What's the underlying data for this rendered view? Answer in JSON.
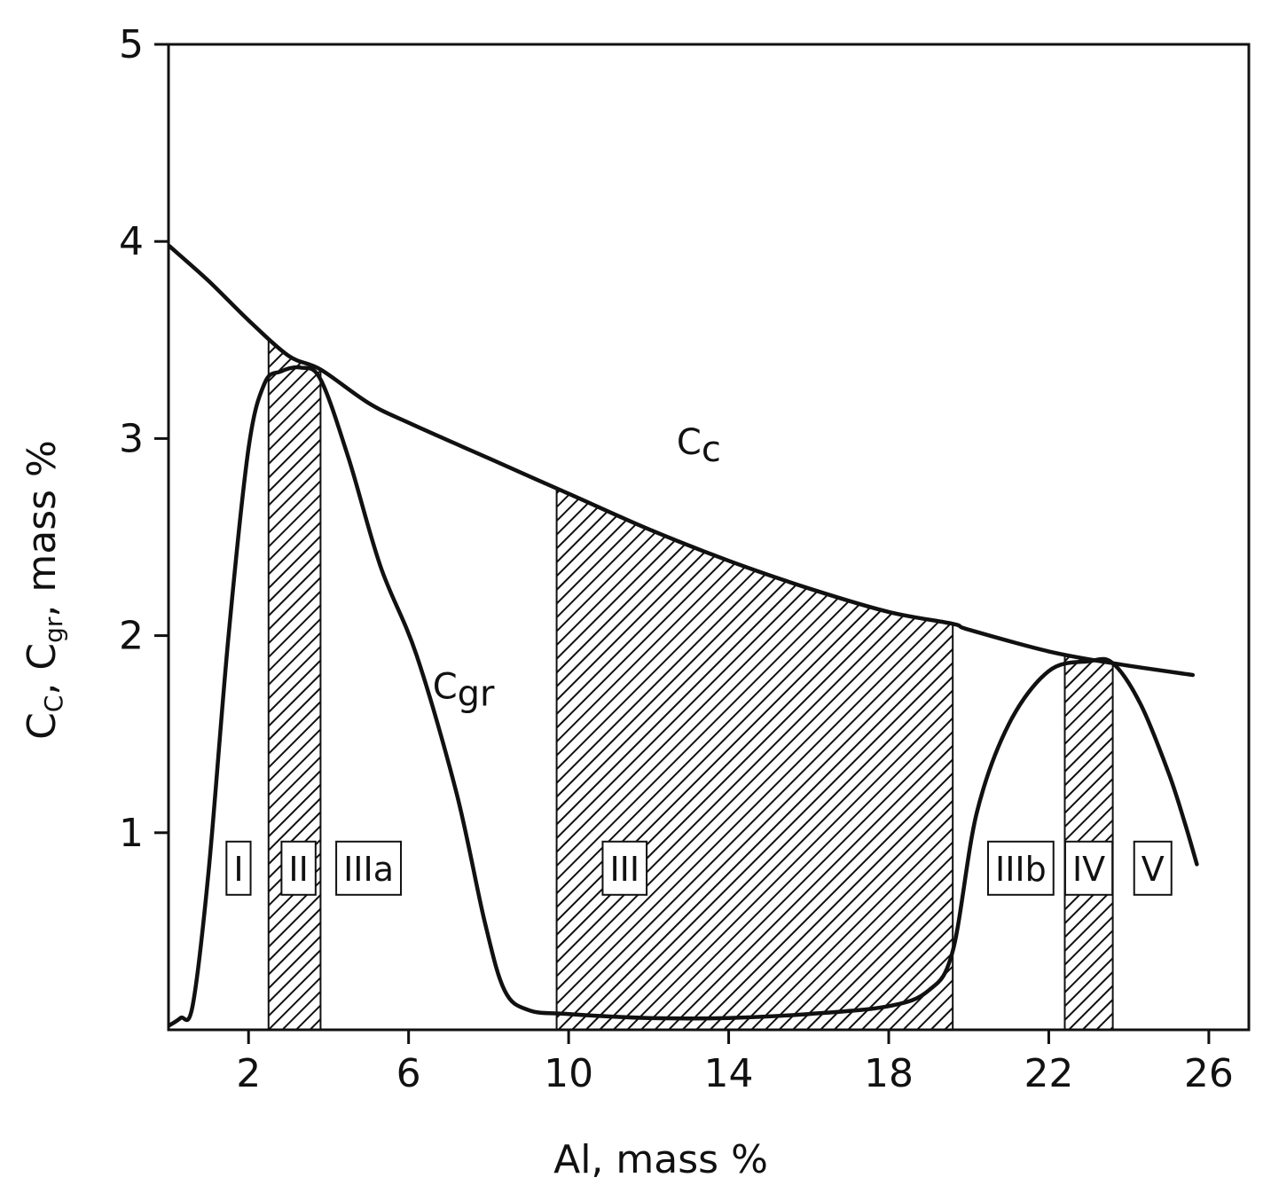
{
  "chart_data": {
    "type": "line",
    "title": "",
    "xlabel": "Al, mass %",
    "ylabel": {
      "main": "C",
      "sub_c": "C",
      "sep1": ", C",
      "sub_gr": "gr",
      "sep2": ", mass %"
    },
    "xlim": [
      0,
      27
    ],
    "ylim": [
      0,
      5
    ],
    "x_ticks": [
      2,
      6,
      10,
      14,
      18,
      22,
      26
    ],
    "y_ticks": [
      1,
      2,
      3,
      4,
      5
    ],
    "x_tick_labels": [
      "2",
      "6",
      "10",
      "14",
      "18",
      "22",
      "26"
    ],
    "y_tick_labels": [
      "1",
      "2",
      "3",
      "4",
      "5"
    ],
    "grid": false,
    "series": [
      {
        "name": "Cc",
        "label_main": "C",
        "label_sub": "c",
        "x": [
          0,
          1,
          2,
          3,
          3.8,
          5,
          6,
          8,
          10,
          12,
          14,
          16,
          18,
          19.6,
          20,
          22,
          23.6,
          25.6
        ],
        "y": [
          3.98,
          3.8,
          3.6,
          3.42,
          3.35,
          3.18,
          3.08,
          2.9,
          2.72,
          2.54,
          2.38,
          2.24,
          2.12,
          2.06,
          2.03,
          1.92,
          1.86,
          1.8
        ]
      },
      {
        "name": "Cgr",
        "label_main": "C",
        "label_sub": "gr",
        "x": [
          0,
          0.3,
          0.6,
          1.0,
          1.5,
          2.0,
          2.4,
          2.8,
          3.3,
          3.8,
          4.5,
          5.3,
          6.2,
          7.2,
          7.9,
          8.4,
          9.0,
          10,
          12,
          14,
          16,
          18,
          19.0,
          19.6,
          20.2,
          21.0,
          22.0,
          23.0,
          23.6,
          24.3,
          25.0,
          25.4,
          25.7
        ],
        "y": [
          0.02,
          0.06,
          0.12,
          0.8,
          2.0,
          2.95,
          3.28,
          3.34,
          3.36,
          3.3,
          2.9,
          2.35,
          1.9,
          1.2,
          0.55,
          0.2,
          0.1,
          0.08,
          0.06,
          0.06,
          0.08,
          0.12,
          0.2,
          0.4,
          1.1,
          1.55,
          1.82,
          1.87,
          1.86,
          1.65,
          1.3,
          1.05,
          0.84
        ]
      }
    ],
    "zones": [
      {
        "label": "I",
        "x_center": 1.75
      },
      {
        "label": "II",
        "x_center": 3.25,
        "hatch": [
          2.5,
          3.8
        ]
      },
      {
        "label": "IIIa",
        "x_center": 5.0
      },
      {
        "label": "III",
        "x_center": 11.4,
        "hatch": [
          9.7,
          19.6
        ]
      },
      {
        "label": "IIIb",
        "x_center": 21.3
      },
      {
        "label": "IV",
        "x_center": 23.0,
        "hatch": [
          22.4,
          23.6
        ]
      },
      {
        "label": "V",
        "x_center": 24.6
      }
    ],
    "zone_label_y": 0.82
  },
  "colors": {
    "line": "#111111",
    "hatch": "#111111",
    "box_fill": "#ffffff"
  }
}
